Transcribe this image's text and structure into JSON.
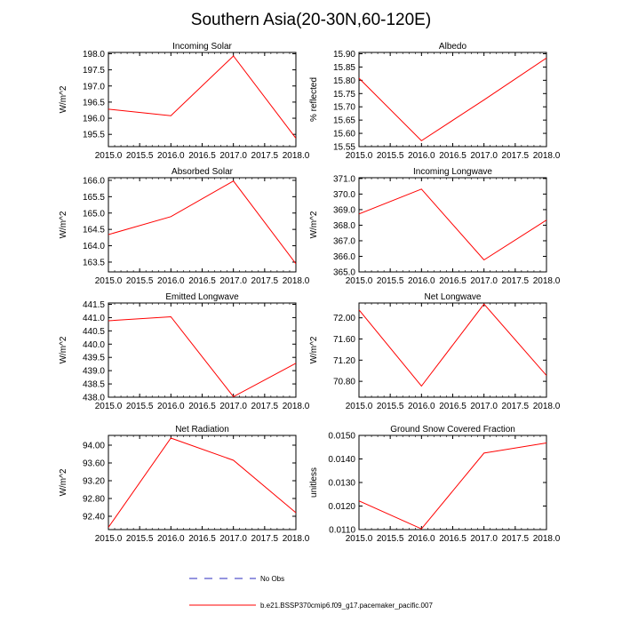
{
  "figure": {
    "title": "Southern Asia(20-30N,60-120E)",
    "legend": {
      "obs_label": "No Obs",
      "model_label": "b.e21.BSSP370cmip6.f09_g17.pacemaker_pacific.007",
      "obs_color": "#2b2bbf",
      "model_color": "#ff0000"
    }
  },
  "chart_data": [
    {
      "type": "line",
      "title": "Incoming Solar",
      "xlabel": "",
      "ylabel": "W/m^2",
      "x": [
        2015.0,
        2016.0,
        2017.0,
        2018.0
      ],
      "values": [
        196.28,
        196.08,
        197.93,
        195.38
      ],
      "xlim": [
        2015.0,
        2018.0
      ],
      "ylim": [
        195.12,
        198.04
      ],
      "xticks": [
        "2015.0",
        "2015.5",
        "2016.0",
        "2016.5",
        "2017.0",
        "2017.5",
        "2018.0"
      ],
      "yticks": [
        195.5,
        196.0,
        196.5,
        197.0,
        197.5,
        198.0
      ],
      "ytick_labels": [
        "195.5",
        "196.0",
        "196.5",
        "197.0",
        "197.5",
        "198.0"
      ],
      "color": "#ff0000",
      "grid": false
    },
    {
      "type": "line",
      "title": "Albedo",
      "xlabel": "",
      "ylabel": "% reflected",
      "x": [
        2015.0,
        2016.0,
        2017.0,
        2018.0
      ],
      "values": [
        15.808,
        15.572,
        15.726,
        15.884
      ],
      "xlim": [
        2015.0,
        2018.0
      ],
      "ylim": [
        15.55,
        15.905
      ],
      "xticks": [
        "2015.0",
        "2015.5",
        "2016.0",
        "2016.5",
        "2017.0",
        "2017.5",
        "2018.0"
      ],
      "yticks": [
        15.55,
        15.6,
        15.65,
        15.7,
        15.75,
        15.8,
        15.85,
        15.9
      ],
      "ytick_labels": [
        "15.55",
        "15.60",
        "15.65",
        "15.70",
        "15.75",
        "15.80",
        "15.85",
        "15.90"
      ],
      "color": "#ff0000",
      "grid": false
    },
    {
      "type": "line",
      "title": "Absorbed Solar",
      "xlabel": "",
      "ylabel": "W/m^2",
      "x": [
        2015.0,
        2016.0,
        2017.0,
        2018.0
      ],
      "values": [
        164.34,
        164.89,
        165.98,
        163.45
      ],
      "xlim": [
        2015.0,
        2018.0
      ],
      "ylim": [
        163.2,
        166.08
      ],
      "xticks": [
        "2015.0",
        "2015.5",
        "2016.0",
        "2016.5",
        "2017.0",
        "2017.5",
        "2018.0"
      ],
      "yticks": [
        163.5,
        164.0,
        164.5,
        165.0,
        165.5,
        166.0
      ],
      "ytick_labels": [
        "163.5",
        "164.0",
        "164.5",
        "165.0",
        "165.5",
        "166.0"
      ],
      "color": "#ff0000",
      "grid": false
    },
    {
      "type": "line",
      "title": "Incoming Longwave",
      "xlabel": "",
      "ylabel": "W/m^2",
      "x": [
        2015.0,
        2016.0,
        2017.0,
        2018.0
      ],
      "values": [
        368.72,
        370.32,
        365.77,
        368.33
      ],
      "xlim": [
        2015.0,
        2018.0
      ],
      "ylim": [
        365.0,
        371.05
      ],
      "xticks": [
        "2015.0",
        "2015.5",
        "2016.0",
        "2016.5",
        "2017.0",
        "2017.5",
        "2018.0"
      ],
      "yticks": [
        365.0,
        366.0,
        367.0,
        368.0,
        369.0,
        370.0,
        371.0
      ],
      "ytick_labels": [
        "365.0",
        "366.0",
        "367.0",
        "368.0",
        "369.0",
        "370.0",
        "371.0"
      ],
      "color": "#ff0000",
      "grid": false
    },
    {
      "type": "line",
      "title": "Emitted Longwave",
      "xlabel": "",
      "ylabel": "W/m^2",
      "x": [
        2015.0,
        2016.0,
        2017.0,
        2018.0
      ],
      "values": [
        440.88,
        441.03,
        438.02,
        439.28
      ],
      "xlim": [
        2015.0,
        2018.0
      ],
      "ylim": [
        438.0,
        441.55
      ],
      "xticks": [
        "2015.0",
        "2015.5",
        "2016.0",
        "2016.5",
        "2017.0",
        "2017.5",
        "2018.0"
      ],
      "yticks": [
        438.0,
        438.5,
        439.0,
        439.5,
        440.0,
        440.5,
        441.0,
        441.5
      ],
      "ytick_labels": [
        "438.0",
        "438.5",
        "439.0",
        "439.5",
        "440.0",
        "440.5",
        "441.0",
        "441.5"
      ],
      "color": "#ff0000",
      "grid": false
    },
    {
      "type": "line",
      "title": "Net Longwave",
      "xlabel": "",
      "ylabel": "W/m^2",
      "x": [
        2015.0,
        2016.0,
        2017.0,
        2018.0
      ],
      "values": [
        72.15,
        70.71,
        72.26,
        70.91
      ],
      "xlim": [
        2015.0,
        2018.0
      ],
      "ylim": [
        70.5,
        72.28
      ],
      "xticks": [
        "2015.0",
        "2015.5",
        "2016.0",
        "2016.5",
        "2017.0",
        "2017.5",
        "2018.0"
      ],
      "yticks": [
        70.8,
        71.2,
        71.6,
        72.0
      ],
      "ytick_labels": [
        "70.80",
        "71.20",
        "71.60",
        "72.00"
      ],
      "color": "#ff0000",
      "grid": false
    },
    {
      "type": "line",
      "title": "Net Radiation",
      "xlabel": "",
      "ylabel": "W/m^2",
      "x": [
        2015.0,
        2016.0,
        2017.0,
        2018.0
      ],
      "values": [
        92.15,
        94.16,
        93.66,
        92.48
      ],
      "xlim": [
        2015.0,
        2018.0
      ],
      "ylim": [
        92.1,
        94.22
      ],
      "xticks": [
        "2015.0",
        "2015.5",
        "2016.0",
        "2016.5",
        "2017.0",
        "2017.5",
        "2018.0"
      ],
      "yticks": [
        92.4,
        92.8,
        93.2,
        93.6,
        94.0
      ],
      "ytick_labels": [
        "92.40",
        "92.80",
        "93.20",
        "93.60",
        "94.00"
      ],
      "color": "#ff0000",
      "grid": false
    },
    {
      "type": "line",
      "title": "Ground Snow Covered Fraction",
      "xlabel": "",
      "ylabel": "unitless",
      "x": [
        2015.0,
        2016.0,
        2017.0,
        2018.0
      ],
      "values": [
        0.01222,
        0.01103,
        0.01425,
        0.01468
      ],
      "xlim": [
        2015.0,
        2018.0
      ],
      "ylim": [
        0.011,
        0.015
      ],
      "xticks": [
        "2015.0",
        "2015.5",
        "2016.0",
        "2016.5",
        "2017.0",
        "2017.5",
        "2018.0"
      ],
      "yticks": [
        0.011,
        0.012,
        0.013,
        0.014,
        0.015
      ],
      "ytick_labels": [
        "0.0110",
        "0.0120",
        "0.0130",
        "0.0140",
        "0.0150"
      ],
      "color": "#ff0000",
      "grid": false
    }
  ]
}
